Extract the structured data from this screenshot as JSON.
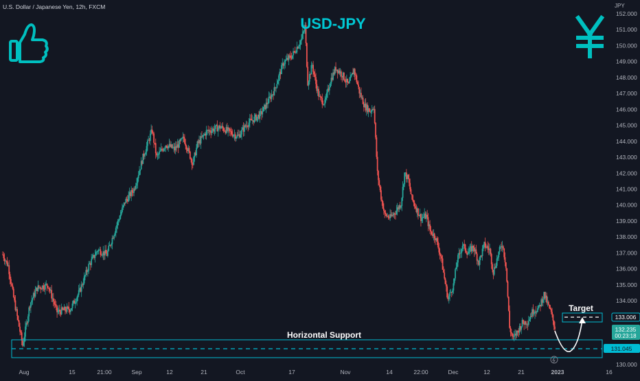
{
  "header": {
    "symbol_line": "U.S. Dollar / Japanese Yen, 12h, FXCM"
  },
  "chart_data": {
    "type": "candlestick",
    "title": "USD-JPY",
    "subtitle": "",
    "xlabel": "",
    "ylabel": "JPY",
    "ylim": [
      130.0,
      152.0
    ],
    "grid": false,
    "y_ticks": [
      "152.000",
      "151.000",
      "150.000",
      "149.000",
      "148.000",
      "147.000",
      "146.000",
      "145.000",
      "144.000",
      "143.000",
      "142.000",
      "141.000",
      "140.000",
      "139.000",
      "138.000",
      "137.000",
      "136.000",
      "135.000",
      "134.000",
      "133.000",
      "132.000",
      "131.000",
      "130.000"
    ],
    "x_ticks": [
      "Aug",
      "15",
      "21:00",
      "Sep",
      "12",
      "21",
      "Oct",
      "17",
      "Nov",
      "14",
      "22:00",
      "Dec",
      "12",
      "21",
      "2023",
      "16"
    ],
    "candle_close_path": [
      {
        "i": 0,
        "c": 136.9
      },
      {
        "i": 6,
        "c": 136.2
      },
      {
        "i": 12,
        "c": 134.2
      },
      {
        "i": 22,
        "c": 131.2
      },
      {
        "i": 30,
        "c": 133.8
      },
      {
        "i": 38,
        "c": 134.8
      },
      {
        "i": 50,
        "c": 135.0
      },
      {
        "i": 60,
        "c": 133.3
      },
      {
        "i": 75,
        "c": 133.5
      },
      {
        "i": 85,
        "c": 134.6
      },
      {
        "i": 95,
        "c": 136.2
      },
      {
        "i": 105,
        "c": 137.2
      },
      {
        "i": 115,
        "c": 136.9
      },
      {
        "i": 125,
        "c": 138.6
      },
      {
        "i": 135,
        "c": 140.2
      },
      {
        "i": 145,
        "c": 141.0
      },
      {
        "i": 155,
        "c": 143.0
      },
      {
        "i": 165,
        "c": 144.7
      },
      {
        "i": 170,
        "c": 143.0
      },
      {
        "i": 180,
        "c": 143.8
      },
      {
        "i": 190,
        "c": 143.5
      },
      {
        "i": 200,
        "c": 144.2
      },
      {
        "i": 210,
        "c": 142.6
      },
      {
        "i": 215,
        "c": 143.8
      },
      {
        "i": 225,
        "c": 144.6
      },
      {
        "i": 240,
        "c": 144.9
      },
      {
        "i": 250,
        "c": 144.6
      },
      {
        "i": 260,
        "c": 144.3
      },
      {
        "i": 270,
        "c": 145.1
      },
      {
        "i": 285,
        "c": 145.7
      },
      {
        "i": 300,
        "c": 147.2
      },
      {
        "i": 310,
        "c": 148.9
      },
      {
        "i": 320,
        "c": 149.4
      },
      {
        "i": 330,
        "c": 150.4
      },
      {
        "i": 334,
        "c": 151.2
      },
      {
        "i": 337,
        "c": 147.7
      },
      {
        "i": 342,
        "c": 148.8
      },
      {
        "i": 346,
        "c": 147.6
      },
      {
        "i": 350,
        "c": 146.7
      },
      {
        "i": 356,
        "c": 146.4
      },
      {
        "i": 362,
        "c": 147.8
      },
      {
        "i": 368,
        "c": 148.6
      },
      {
        "i": 375,
        "c": 148.2
      },
      {
        "i": 382,
        "c": 147.5
      },
      {
        "i": 388,
        "c": 148.5
      },
      {
        "i": 394,
        "c": 147.1
      },
      {
        "i": 400,
        "c": 146.2
      },
      {
        "i": 406,
        "c": 145.9
      },
      {
        "i": 410,
        "c": 146.2
      },
      {
        "i": 414,
        "c": 142.0
      },
      {
        "i": 418,
        "c": 140.5
      },
      {
        "i": 422,
        "c": 139.4
      },
      {
        "i": 428,
        "c": 139.2
      },
      {
        "i": 434,
        "c": 139.6
      },
      {
        "i": 440,
        "c": 140.1
      },
      {
        "i": 444,
        "c": 142.0
      },
      {
        "i": 448,
        "c": 141.6
      },
      {
        "i": 452,
        "c": 140.4
      },
      {
        "i": 456,
        "c": 139.9
      },
      {
        "i": 462,
        "c": 139.2
      },
      {
        "i": 468,
        "c": 139.3
      },
      {
        "i": 472,
        "c": 138.4
      },
      {
        "i": 478,
        "c": 138.0
      },
      {
        "i": 484,
        "c": 136.8
      },
      {
        "i": 488,
        "c": 135.4
      },
      {
        "i": 492,
        "c": 134.1
      },
      {
        "i": 498,
        "c": 135.0
      },
      {
        "i": 502,
        "c": 136.5
      },
      {
        "i": 508,
        "c": 137.5
      },
      {
        "i": 514,
        "c": 137.0
      },
      {
        "i": 520,
        "c": 137.4
      },
      {
        "i": 526,
        "c": 136.4
      },
      {
        "i": 532,
        "c": 137.5
      },
      {
        "i": 538,
        "c": 137.2
      },
      {
        "i": 542,
        "c": 135.8
      },
      {
        "i": 548,
        "c": 137.0
      },
      {
        "i": 552,
        "c": 137.6
      },
      {
        "i": 556,
        "c": 136.2
      },
      {
        "i": 560,
        "c": 132.3
      },
      {
        "i": 564,
        "c": 131.6
      },
      {
        "i": 568,
        "c": 132.0
      },
      {
        "i": 574,
        "c": 132.6
      },
      {
        "i": 580,
        "c": 132.7
      },
      {
        "i": 586,
        "c": 133.4
      },
      {
        "i": 592,
        "c": 133.5
      },
      {
        "i": 598,
        "c": 134.4
      },
      {
        "i": 602,
        "c": 133.8
      },
      {
        "i": 606,
        "c": 133.2
      },
      {
        "i": 610,
        "c": 132.3
      }
    ],
    "annotations": {
      "support_label": "Horizontal Support",
      "target_label": "Target"
    },
    "price_labels": {
      "target": "133.006",
      "current": "132.235",
      "countdown": "00:23:18",
      "support": "131.045"
    },
    "colors": {
      "background": "#131722",
      "up": "#26a69a",
      "down": "#ef5350",
      "title": "#00c8d4",
      "zone": "#00bcd4",
      "axis_text": "#b2b5be",
      "icons": "#00c0c0"
    }
  }
}
